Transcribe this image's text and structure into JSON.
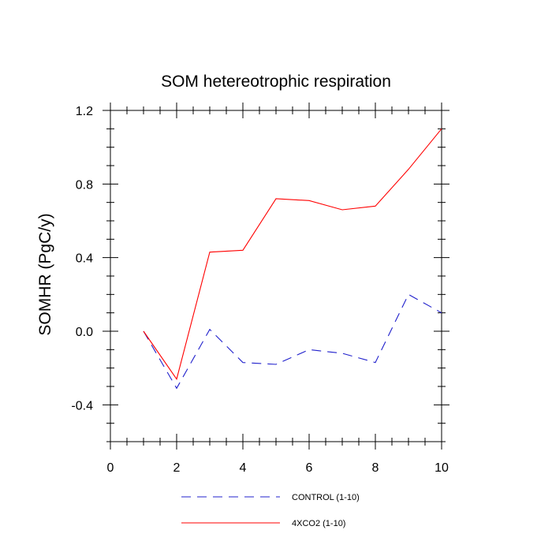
{
  "chart_data": {
    "type": "line",
    "title": "SOM hetereotrophic respiration",
    "xlabel": "",
    "ylabel": "SOMHR  (PgC/y)",
    "xlim": [
      0,
      10
    ],
    "ylim": [
      -0.6,
      1.2
    ],
    "x_ticks": [
      0,
      2,
      4,
      6,
      8,
      10
    ],
    "x_tick_labels": [
      "0",
      "2",
      "4",
      "6",
      "8",
      "10"
    ],
    "y_ticks": [
      -0.4,
      0.0,
      0.4,
      0.8,
      1.2
    ],
    "y_tick_labels": [
      "-0.4",
      "0.0",
      "0.4",
      "0.8",
      "1.2"
    ],
    "grid": false,
    "legend_position": "bottom",
    "series": [
      {
        "name": "CONTROL (1-10)",
        "color": "#2020cc",
        "dash": "dashed",
        "x": [
          1,
          2,
          3,
          4,
          5,
          6,
          7,
          8,
          9,
          10
        ],
        "values": [
          0.0,
          -0.31,
          0.01,
          -0.17,
          -0.18,
          -0.1,
          -0.12,
          -0.17,
          0.2,
          0.1
        ]
      },
      {
        "name": "4XCO2 (1-10)",
        "color": "#ff0000",
        "dash": "solid",
        "x": [
          1,
          2,
          3,
          4,
          5,
          6,
          7,
          8,
          9,
          10
        ],
        "values": [
          0.0,
          -0.26,
          0.43,
          0.44,
          0.72,
          0.71,
          0.66,
          0.68,
          0.88,
          1.1
        ]
      }
    ]
  }
}
